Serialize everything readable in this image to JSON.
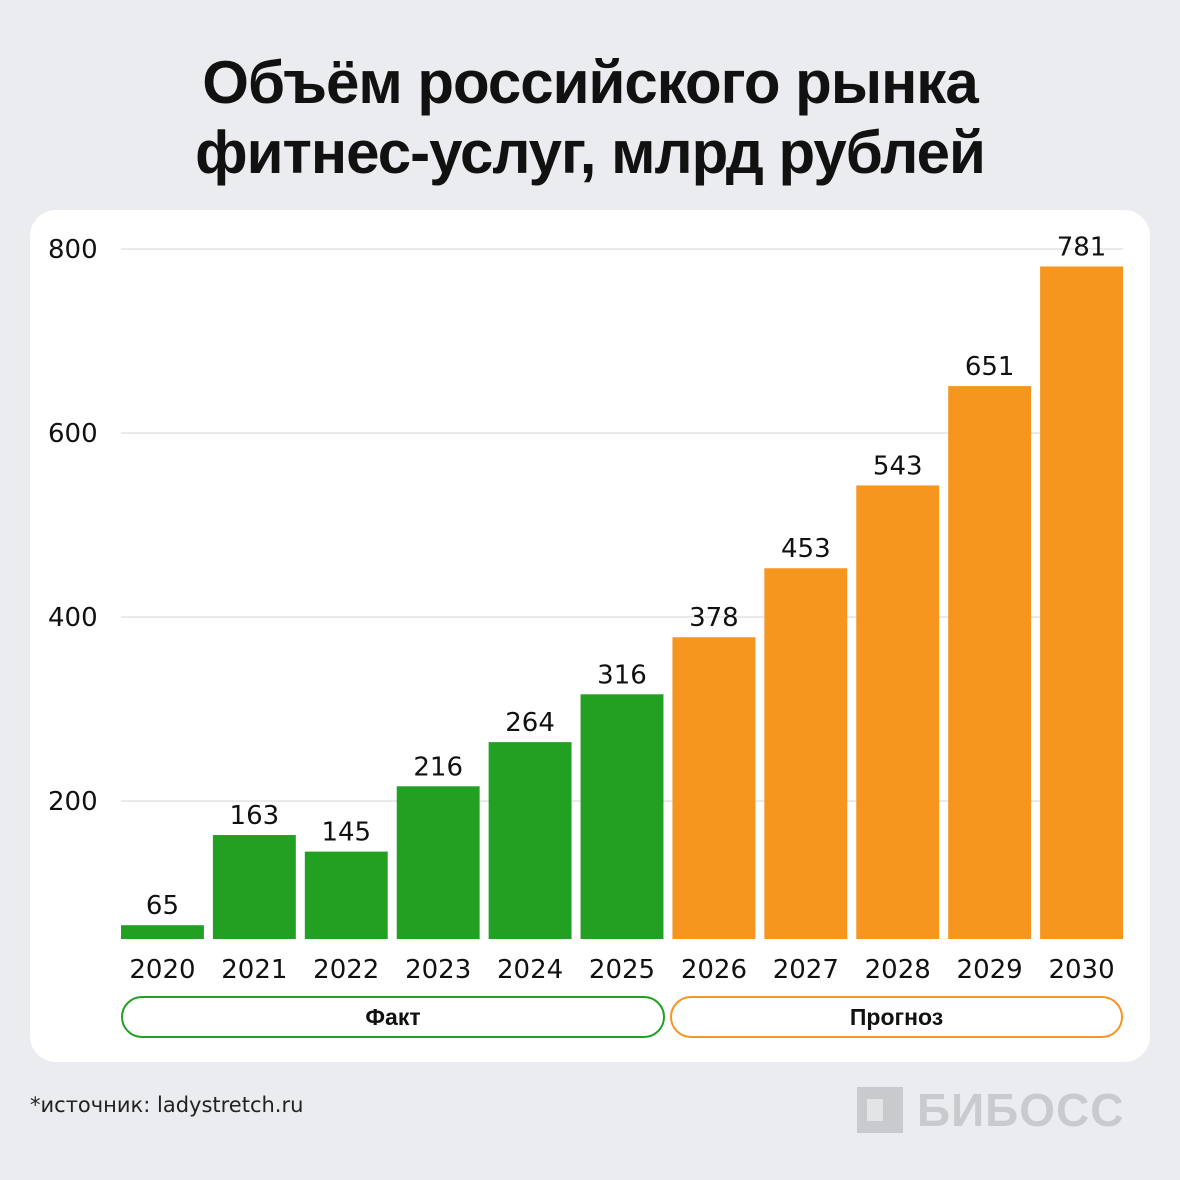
{
  "title": {
    "line1": "Объём российского рынка",
    "line2": "фитнес-услуг, млрд рублей"
  },
  "colors": {
    "fact": "#22a022",
    "forecast": "#f7961f",
    "grid": "#e3e4e7",
    "background": "#ebecef",
    "card": "#ffffff"
  },
  "chart_data": {
    "type": "bar",
    "title": "Объём российского рынка фитнес-услуг, млрд рублей",
    "categories": [
      "2020",
      "2021",
      "2022",
      "2023",
      "2024",
      "2025",
      "2026",
      "2027",
      "2028",
      "2029",
      "2030"
    ],
    "series": [
      {
        "name": "Факт",
        "values": [
          65,
          163,
          145,
          216,
          264,
          316,
          null,
          null,
          null,
          null,
          null
        ]
      },
      {
        "name": "Прогноз",
        "values": [
          null,
          null,
          null,
          null,
          null,
          null,
          378,
          453,
          543,
          651,
          781
        ]
      }
    ],
    "values": [
      65,
      163,
      145,
      216,
      264,
      316,
      378,
      453,
      543,
      651,
      781
    ],
    "yticks": [
      200,
      400,
      600,
      800
    ],
    "ylim": [
      50,
      800
    ],
    "grid": true,
    "xlabel": "",
    "ylabel": ""
  },
  "legend": {
    "fact_label": "Факт",
    "forecast_label": "Прогноз"
  },
  "source": "*источник: ladystretch.ru",
  "brand": "БИБОСС"
}
